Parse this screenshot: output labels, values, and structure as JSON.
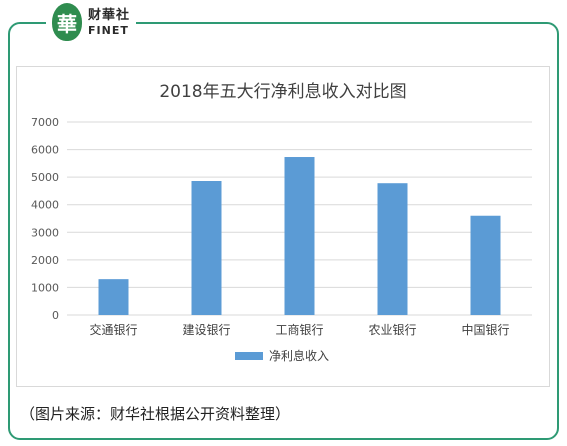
{
  "logo": {
    "mark": "華",
    "name_cn": "财華社",
    "name_en": "FINET"
  },
  "chart_data": {
    "type": "bar",
    "title": "2018年五大行净利息收入对比图",
    "categories": [
      "交通银行",
      "建设银行",
      "工商银行",
      "农业银行",
      "中国银行"
    ],
    "series": [
      {
        "name": "净利息收入",
        "values": [
          1300,
          4860,
          5730,
          4780,
          3600
        ],
        "color": "#5b9bd5"
      }
    ],
    "ylim": [
      0,
      7000
    ],
    "yticks": [
      0,
      1000,
      2000,
      3000,
      4000,
      5000,
      6000,
      7000
    ],
    "grid": true,
    "legend_position": "bottom"
  },
  "source_note": "（图片来源：财华社根据公开资料整理）"
}
